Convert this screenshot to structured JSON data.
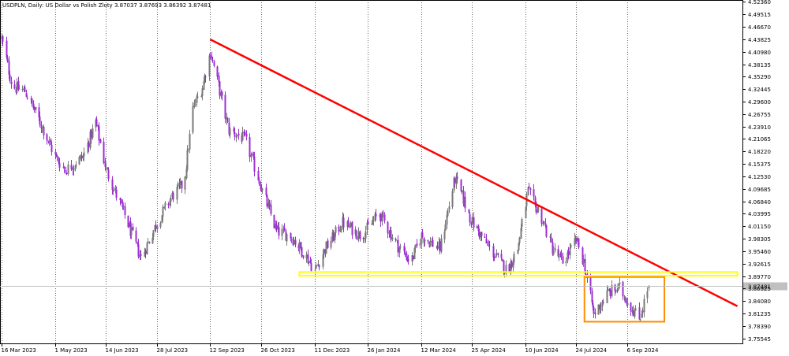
{
  "header": {
    "symbol": "USDPLN",
    "timeframe": "Daily",
    "description": "US Dollar vs Polish Zloty",
    "ohlc": "3.87037 3.87693 3.86392 3.87481"
  },
  "chart_data": {
    "type": "candlestick",
    "title": "USDPLN, Daily: US Dollar vs Polish Zloty 3.87037 3.87693 3.86392 3.87481",
    "y_ticks": [
      "4.52360",
      "4.49515",
      "4.46670",
      "4.43825",
      "4.40980",
      "4.38135",
      "4.35290",
      "4.32445",
      "4.29600",
      "4.26755",
      "4.23910",
      "4.21065",
      "4.18220",
      "4.15375",
      "4.12530",
      "4.09685",
      "4.06840",
      "4.03995",
      "4.01150",
      "3.98305",
      "3.95460",
      "3.92615",
      "3.89770",
      "3.86925",
      "3.84080",
      "3.81235",
      "3.78390",
      "3.75545"
    ],
    "ylim": [
      3.744,
      4.528
    ],
    "x_ticks": [
      "16 Mar 2023",
      "1 May 2023",
      "14 Jun 2023",
      "28 Jul 2023",
      "12 Sep 2023",
      "26 Oct 2023",
      "11 Dec 2023",
      "26 Jan 2024",
      "12 Mar 2024",
      "25 Apr 2024",
      "10 Jun 2024",
      "24 Jul 2024",
      "6 Sep 2024"
    ],
    "grid": "vertical dotted lines",
    "current_price": "3.87481",
    "bull_color": "#7a7a7a",
    "bear_color": "#9b30d0",
    "anchors": [
      [
        "2023-03-16",
        4.44
      ],
      [
        "2023-03-25",
        4.33
      ],
      [
        "2023-04-05",
        4.32
      ],
      [
        "2023-04-18",
        4.25
      ],
      [
        "2023-05-01",
        4.17
      ],
      [
        "2023-05-10",
        4.14
      ],
      [
        "2023-05-25",
        4.17
      ],
      [
        "2023-06-05",
        4.25
      ],
      [
        "2023-06-14",
        4.14
      ],
      [
        "2023-06-28",
        4.05
      ],
      [
        "2023-07-14",
        3.94
      ],
      [
        "2023-07-28",
        4.02
      ],
      [
        "2023-08-10",
        4.08
      ],
      [
        "2023-08-20",
        4.11
      ],
      [
        "2023-08-28",
        4.28
      ],
      [
        "2023-09-05",
        4.33
      ],
      [
        "2023-09-12",
        4.41
      ],
      [
        "2023-09-20",
        4.32
      ],
      [
        "2023-09-28",
        4.23
      ],
      [
        "2023-10-12",
        4.21
      ],
      [
        "2023-10-26",
        4.1
      ],
      [
        "2023-11-08",
        4.0
      ],
      [
        "2023-11-20",
        3.99
      ],
      [
        "2023-12-02",
        3.95
      ],
      [
        "2023-12-11",
        3.91
      ],
      [
        "2023-12-20",
        3.96
      ],
      [
        "2024-01-04",
        4.02
      ],
      [
        "2024-01-20",
        3.99
      ],
      [
        "2024-02-05",
        4.04
      ],
      [
        "2024-02-20",
        3.97
      ],
      [
        "2024-03-03",
        3.93
      ],
      [
        "2024-03-12",
        3.99
      ],
      [
        "2024-03-28",
        3.96
      ],
      [
        "2024-04-10",
        4.12
      ],
      [
        "2024-04-25",
        4.02
      ],
      [
        "2024-05-10",
        3.96
      ],
      [
        "2024-05-25",
        3.91
      ],
      [
        "2024-06-03",
        3.96
      ],
      [
        "2024-06-12",
        4.09
      ],
      [
        "2024-06-24",
        4.03
      ],
      [
        "2024-07-03",
        3.96
      ],
      [
        "2024-07-12",
        3.93
      ],
      [
        "2024-07-24",
        3.98
      ],
      [
        "2024-07-30",
        3.93
      ],
      [
        "2024-08-08",
        3.81
      ],
      [
        "2024-08-20",
        3.86
      ],
      [
        "2024-08-30",
        3.87
      ],
      [
        "2024-09-06",
        3.84
      ],
      [
        "2024-09-16",
        3.8
      ],
      [
        "2024-09-24",
        3.875
      ]
    ],
    "annotations": [
      {
        "type": "trendline",
        "color": "#ff0000",
        "from": [
          "2023-09-12",
          4.438
        ],
        "to": [
          "2024-12-10",
          3.829
        ]
      },
      {
        "type": "horizontal_band",
        "color": "#ffff00",
        "y": [
          3.8985,
          3.907
        ],
        "from": "2023-11-28",
        "to": "2024-12-10"
      },
      {
        "type": "rectangle",
        "color": "#ff8c00",
        "from": [
          "2024-07-31",
          3.7935
        ],
        "to": [
          "2024-10-08",
          3.8955
        ]
      }
    ]
  }
}
